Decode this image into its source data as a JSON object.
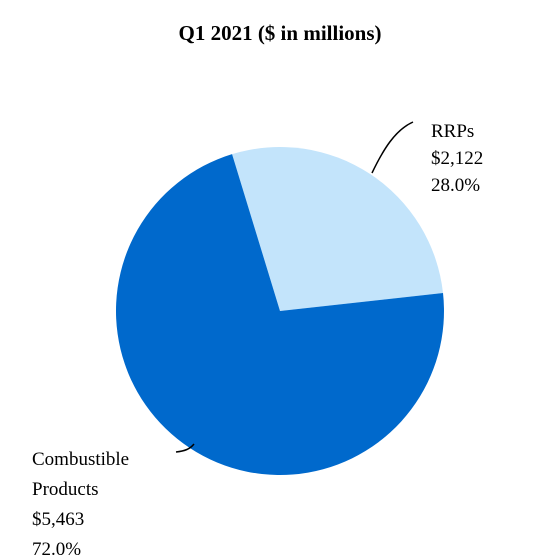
{
  "chart_data": {
    "type": "pie",
    "title": "Q1 2021 ($ in millions)",
    "slices": [
      {
        "label_lines": [
          "RRPs"
        ],
        "value": 2122,
        "value_label": "$2,122",
        "percent": 28.0,
        "percent_label": "28.0%",
        "color": "#c3e4fb"
      },
      {
        "label_lines": [
          "Combustible",
          "Products"
        ],
        "value": 5463,
        "value_label": "$5,463",
        "percent": 72.0,
        "percent_label": "72.0%",
        "color": "#0069cc"
      }
    ]
  }
}
